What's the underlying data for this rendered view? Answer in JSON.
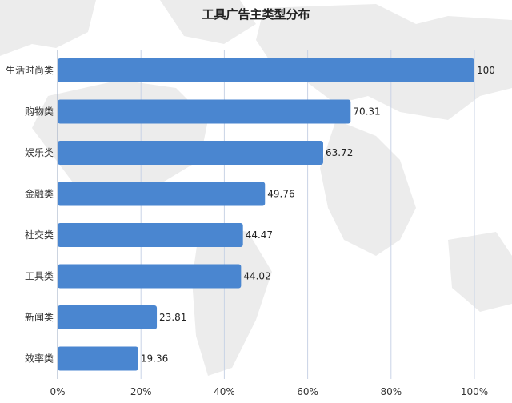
{
  "chart_data": {
    "type": "bar",
    "orientation": "horizontal",
    "title": "工具广告主类型分布",
    "categories": [
      "生活时尚类",
      "购物类",
      "娱乐类",
      "金融类",
      "社交类",
      "工具类",
      "新闻类",
      "效率类"
    ],
    "values": [
      100,
      70.31,
      63.72,
      49.76,
      44.47,
      44.02,
      23.81,
      19.36
    ],
    "value_labels": [
      "100",
      "70.31",
      "63.72",
      "49.76",
      "44.47",
      "44.02",
      "23.81",
      "19.36"
    ],
    "xlim": [
      0,
      100
    ],
    "x_ticks": [
      0,
      20,
      40,
      60,
      80,
      100
    ],
    "x_tick_labels": [
      "0%",
      "20%",
      "40%",
      "60%",
      "80%",
      "100%"
    ],
    "xlabel": "",
    "ylabel": "",
    "grid": "vertical",
    "legend": "none",
    "colors": {
      "bar": "#4a86d0",
      "grid": "#c9d3e6",
      "background_map": "#ececec"
    }
  }
}
